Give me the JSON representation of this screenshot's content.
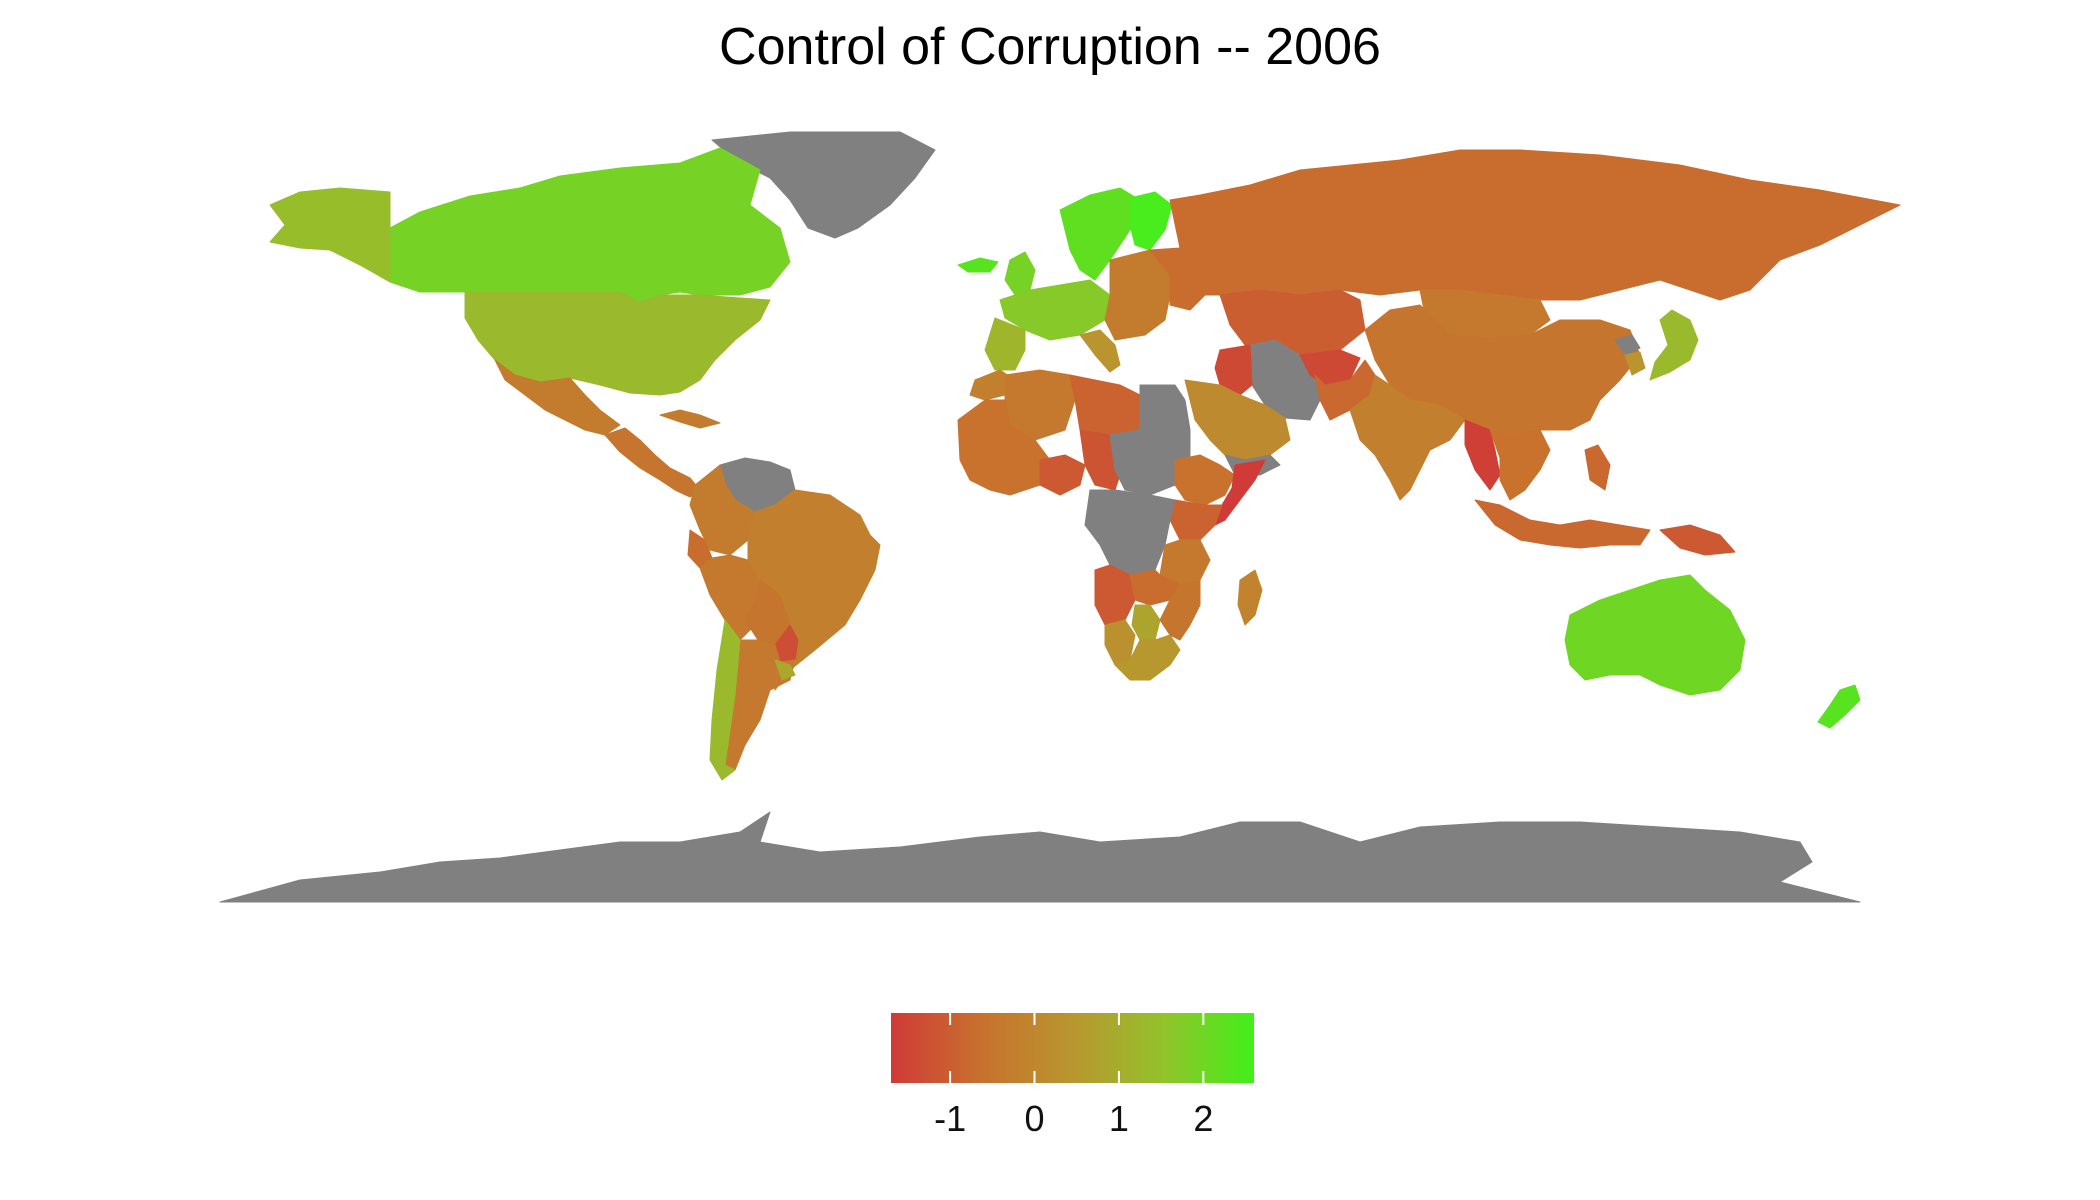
{
  "title": "Control of Corruption -- 2006",
  "legend": {
    "ticks": [
      -1,
      0,
      1,
      2
    ],
    "range": [
      -1.7,
      2.6
    ],
    "colors": [
      "#d03a37",
      "#c8712e",
      "#b9962f",
      "#93c22b",
      "#41f01a"
    ],
    "missing_color": "#808080"
  },
  "chart_data": {
    "type": "choropleth",
    "title": "Control of Corruption -- 2006",
    "value_range": [
      -1.7,
      2.6
    ],
    "legend_ticks": [
      "-1",
      "0",
      "1",
      "2"
    ],
    "no_data_color": "#808080",
    "regions": [
      {
        "name": "Greenland",
        "value": null
      },
      {
        "name": "Antarctica",
        "value": null
      },
      {
        "name": "Canada",
        "value": 1.9
      },
      {
        "name": "Alaska",
        "value": 1.4
      },
      {
        "name": "United States",
        "value": 1.3
      },
      {
        "name": "Mexico",
        "value": -0.3
      },
      {
        "name": "Central America",
        "value": -0.5
      },
      {
        "name": "Cuba",
        "value": -0.3
      },
      {
        "name": "Venezuela",
        "value": null
      },
      {
        "name": "Colombia",
        "value": -0.3
      },
      {
        "name": "Ecuador",
        "value": -0.7
      },
      {
        "name": "Peru",
        "value": -0.4
      },
      {
        "name": "Brazil",
        "value": -0.2
      },
      {
        "name": "Bolivia",
        "value": -0.5
      },
      {
        "name": "Paraguay",
        "value": -1.3
      },
      {
        "name": "Argentina",
        "value": -0.4
      },
      {
        "name": "Chile",
        "value": 1.3
      },
      {
        "name": "Uruguay",
        "value": 0.9
      },
      {
        "name": "Iceland",
        "value": 2.3
      },
      {
        "name": "Scandinavia",
        "value": 2.2
      },
      {
        "name": "Finland",
        "value": 2.5
      },
      {
        "name": "United Kingdom",
        "value": 1.9
      },
      {
        "name": "Western Europe",
        "value": 1.7
      },
      {
        "name": "Iberia",
        "value": 1.2
      },
      {
        "name": "Italy",
        "value": 0.4
      },
      {
        "name": "Eastern Europe",
        "value": -0.3
      },
      {
        "name": "Ukraine and Belarus",
        "value": -0.7
      },
      {
        "name": "Russia",
        "value": -0.7
      },
      {
        "name": "Kazakhstan and Central Asia",
        "value": -1.0
      },
      {
        "name": "Mongolia",
        "value": -0.4
      },
      {
        "name": "China",
        "value": -0.5
      },
      {
        "name": "North Korea",
        "value": null
      },
      {
        "name": "South Korea",
        "value": 0.4
      },
      {
        "name": "Japan",
        "value": 1.3
      },
      {
        "name": "Iran",
        "value": null
      },
      {
        "name": "Iraq",
        "value": -1.4
      },
      {
        "name": "Saudi Arabia",
        "value": 0.1
      },
      {
        "name": "Yemen",
        "value": null
      },
      {
        "name": "Afghanistan",
        "value": -1.4
      },
      {
        "name": "Pakistan",
        "value": -0.8
      },
      {
        "name": "India",
        "value": -0.2
      },
      {
        "name": "Myanmar",
        "value": -1.6
      },
      {
        "name": "Southeast Asia",
        "value": -0.6
      },
      {
        "name": "Philippines",
        "value": -0.8
      },
      {
        "name": "Indonesia",
        "value": -0.8
      },
      {
        "name": "Papua New Guinea",
        "value": -1.1
      },
      {
        "name": "Australia",
        "value": 2.0
      },
      {
        "name": "New Zealand",
        "value": 2.3
      },
      {
        "name": "Morocco",
        "value": -0.2
      },
      {
        "name": "Algeria",
        "value": -0.4
      },
      {
        "name": "Libya",
        "value": -0.9
      },
      {
        "name": "Egypt",
        "value": null
      },
      {
        "name": "West Africa",
        "value": -0.6
      },
      {
        "name": "Nigeria",
        "value": -1.1
      },
      {
        "name": "Chad",
        "value": -1.2
      },
      {
        "name": "Sudan",
        "value": null
      },
      {
        "name": "Ethiopia",
        "value": -0.6
      },
      {
        "name": "Somalia",
        "value": -1.7
      },
      {
        "name": "Kenya",
        "value": -0.9
      },
      {
        "name": "DR Congo",
        "value": null
      },
      {
        "name": "Angola",
        "value": -1.1
      },
      {
        "name": "Tanzania",
        "value": -0.4
      },
      {
        "name": "Zambia",
        "value": -0.7
      },
      {
        "name": "Namibia",
        "value": 0.3
      },
      {
        "name": "Botswana",
        "value": 0.8
      },
      {
        "name": "South Africa",
        "value": 0.5
      },
      {
        "name": "Mozambique",
        "value": -0.5
      },
      {
        "name": "Madagascar",
        "value": -0.1
      }
    ]
  }
}
